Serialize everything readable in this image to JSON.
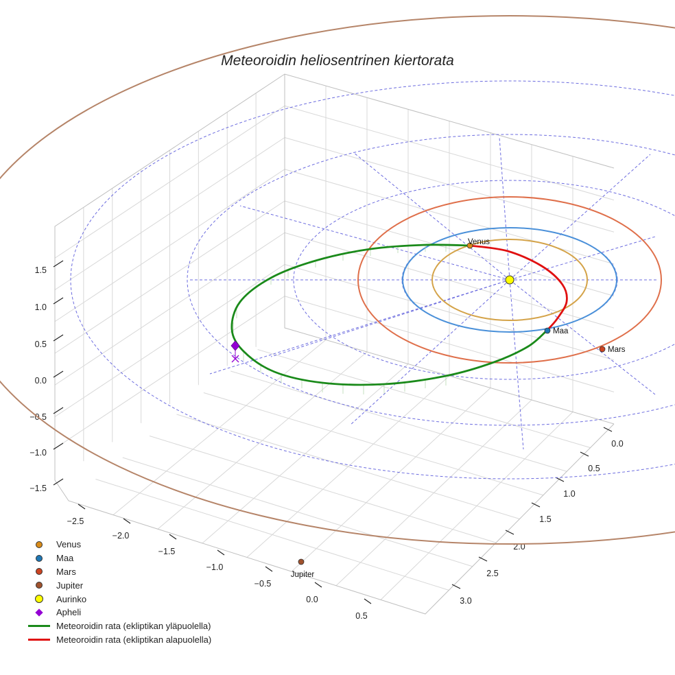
{
  "chart_data": {
    "type": "scatter",
    "title": "Meteoroidin heliosentrinen kiertorata",
    "axes": {
      "x_ticks": [
        "−2.5",
        "−2.0",
        "−1.5",
        "−1.0",
        "−0.5",
        "0.0",
        "0.5"
      ],
      "y_ticks": [
        "0.0",
        "0.5",
        "1.0",
        "1.5",
        "2.0",
        "2.5",
        "3.0"
      ],
      "z_ticks": [
        "−1.5",
        "−1.0",
        "−0.5",
        "0.0",
        "0.5",
        "1.0",
        "1.5"
      ],
      "grid": true
    },
    "series": [
      {
        "name": "Venus",
        "kind": "planet",
        "color": "#d98c1a",
        "label": "Venus"
      },
      {
        "name": "Maa",
        "kind": "planet",
        "color": "#1f77b4",
        "label": "Maa"
      },
      {
        "name": "Mars",
        "kind": "planet",
        "color": "#cc4422",
        "label": "Mars"
      },
      {
        "name": "Jupiter",
        "kind": "planet",
        "color": "#a0522d",
        "label": "Jupiter"
      },
      {
        "name": "Aurinko",
        "kind": "sun",
        "color": "#ffff00"
      },
      {
        "name": "Apheli",
        "kind": "marker",
        "color": "#9400d3"
      },
      {
        "name": "Meteoroidin rata (ekliptikan yläpuolella)",
        "kind": "line",
        "color": "#1a8a1a"
      },
      {
        "name": "Meteoroidin rata (ekliptikan alapuolella)",
        "kind": "line",
        "color": "#e01010"
      }
    ],
    "legend_position": "bottom-left",
    "orbit_colors": {
      "venus": "#d4a349",
      "earth": "#4a90d9",
      "mars": "#df6f4a",
      "jupiter": "#b58468",
      "grid": "#6b6bdf"
    }
  }
}
